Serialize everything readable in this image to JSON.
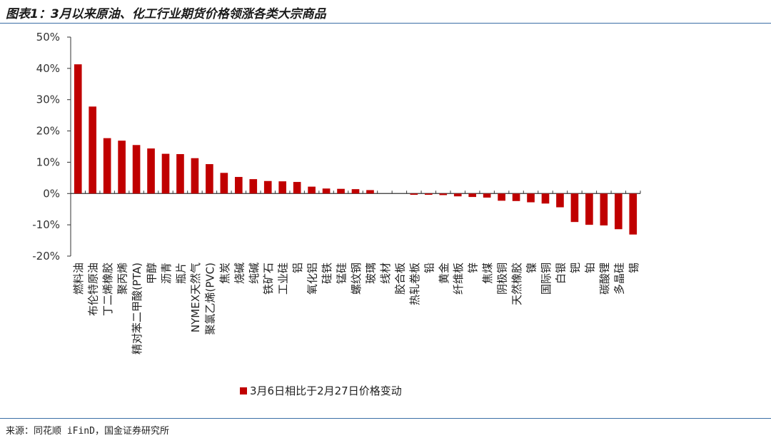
{
  "title": "图表1：3月以来原油、化工行业期货价格领涨各类大宗商品",
  "source": "来源：同花顺 iFinD，国金证券研究所",
  "chart_data": {
    "type": "bar",
    "ytick_labels": [
      "50%",
      "40%",
      "30%",
      "20%",
      "10%",
      "0%",
      "-10%",
      "-20%"
    ],
    "ylim": [
      -20,
      50
    ],
    "yticks": [
      50,
      40,
      30,
      20,
      10,
      0,
      -10,
      -20
    ],
    "categories": [
      "燃料油",
      "布伦特原油",
      "丁二烯橡胶",
      "聚丙烯",
      "精对苯二甲酸(PTA)",
      "甲醇",
      "沥青",
      "瓶片",
      "NYMEX天然气",
      "聚氯乙烯(PVC)",
      "焦炭",
      "烧碱",
      "纯碱",
      "铁矿石",
      "工业硅",
      "铝",
      "氧化铝",
      "硅铁",
      "锰硅",
      "螺纹钢",
      "玻璃",
      "线材",
      "胶合板",
      "热轧卷板",
      "铅",
      "黄金",
      "纤维板",
      "锌",
      "焦煤",
      "阴极铜",
      "天然橡胶",
      "镍",
      "国际铜",
      "白银",
      "钯",
      "铂",
      "碳酸锂",
      "多晶硅",
      "锡"
    ],
    "series": [
      {
        "name": "3月6日相比于2月27日价格变动",
        "color": "#c00000",
        "values": [
          41.3,
          27.8,
          17.7,
          16.9,
          15.5,
          14.4,
          12.7,
          12.6,
          11.3,
          9.4,
          6.6,
          5.3,
          4.6,
          4.0,
          3.9,
          3.7,
          2.2,
          1.6,
          1.5,
          1.4,
          1.1,
          0.0,
          0.0,
          -0.4,
          -0.4,
          -0.5,
          -0.9,
          -1.1,
          -1.3,
          -2.3,
          -2.4,
          -2.8,
          -3.2,
          -4.4,
          -9.1,
          -10.0,
          -10.2,
          -11.4,
          -13.1
        ]
      }
    ],
    "grid": false,
    "legend_position": "bottom"
  }
}
